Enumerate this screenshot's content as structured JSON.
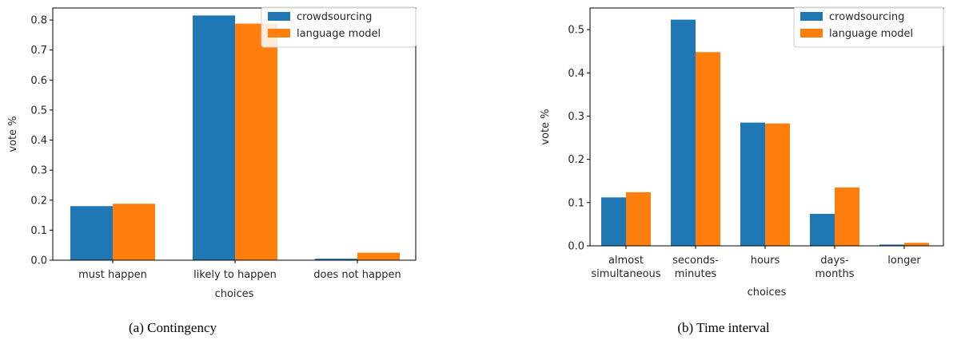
{
  "chart_data": [
    {
      "type": "bar",
      "caption": "(a) Contingency",
      "xlabel": "choices",
      "ylabel": "vote %",
      "ylim": [
        0,
        0.84
      ],
      "yticks": [
        0.0,
        0.1,
        0.2,
        0.3,
        0.4,
        0.5,
        0.6,
        0.7,
        0.8
      ],
      "ytick_labels": [
        "0.0",
        "0.1",
        "0.2",
        "0.3",
        "0.4",
        "0.5",
        "0.6",
        "0.7",
        "0.8"
      ],
      "categories": [
        [
          "must happen"
        ],
        [
          "likely to happen"
        ],
        [
          "does not happen"
        ]
      ],
      "series": [
        {
          "name": "crowdsourcing",
          "color": "#1f77b4",
          "values": [
            0.18,
            0.815,
            0.005
          ]
        },
        {
          "name": "language model",
          "color": "#ff7f0e",
          "values": [
            0.188,
            0.788,
            0.025
          ]
        }
      ],
      "legend": "top-right",
      "grid": false
    },
    {
      "type": "bar",
      "caption": "(b) Time interval",
      "xlabel": "choices",
      "ylabel": "vote %",
      "ylim": [
        0,
        0.55
      ],
      "yticks": [
        0.0,
        0.1,
        0.2,
        0.3,
        0.4,
        0.5
      ],
      "ytick_labels": [
        "0.0",
        "0.1",
        "0.2",
        "0.3",
        "0.4",
        "0.5"
      ],
      "categories": [
        [
          "almost",
          "simultaneous"
        ],
        [
          "seconds-",
          "minutes"
        ],
        [
          "hours"
        ],
        [
          "days-",
          "months"
        ],
        [
          "longer"
        ]
      ],
      "series": [
        {
          "name": "crowdsourcing",
          "color": "#1f77b4",
          "values": [
            0.112,
            0.523,
            0.285,
            0.074,
            0.003
          ]
        },
        {
          "name": "language model",
          "color": "#ff7f0e",
          "values": [
            0.124,
            0.448,
            0.283,
            0.135,
            0.007
          ]
        }
      ],
      "legend": "top-right",
      "grid": false
    }
  ]
}
